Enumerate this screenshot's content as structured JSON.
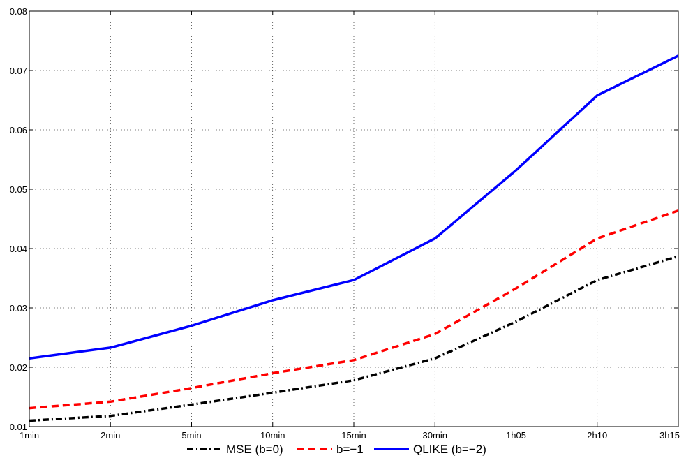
{
  "chart_data": {
    "type": "line",
    "title": "",
    "xlabel": "",
    "ylabel": "",
    "categories": [
      "1min",
      "2min",
      "5min",
      "10min",
      "15min",
      "30min",
      "1h05",
      "2h10",
      "3h15"
    ],
    "ylim": [
      0.01,
      0.08
    ],
    "yticks": [
      "0.01",
      "0.02",
      "0.03",
      "0.04",
      "0.05",
      "0.06",
      "0.07",
      "0.08"
    ],
    "grid": true,
    "grid_style": "dotted",
    "legend_position": "bottom",
    "series": [
      {
        "name": "MSE (b=0)",
        "values": [
          0.011,
          0.0118,
          0.0137,
          0.0157,
          0.0178,
          0.0215,
          0.0277,
          0.0347,
          0.0387
        ],
        "color": "#000000",
        "line_style": "dash-dot"
      },
      {
        "name": "b=−1",
        "values": [
          0.0131,
          0.0142,
          0.0165,
          0.019,
          0.0212,
          0.0256,
          0.0333,
          0.0417,
          0.0464
        ],
        "color": "#ff0000",
        "line_style": "dashed"
      },
      {
        "name": "QLIKE (b=−2)",
        "values": [
          0.0215,
          0.0233,
          0.027,
          0.0313,
          0.0347,
          0.0417,
          0.0532,
          0.0658,
          0.0725
        ],
        "color": "#0000ff",
        "line_style": "solid"
      }
    ]
  }
}
